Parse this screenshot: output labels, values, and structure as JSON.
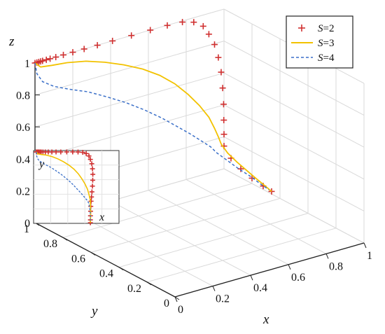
{
  "chart_data": {
    "type": "line",
    "subtype": "3d-trajectory",
    "xlabel": "x",
    "ylabel": "y",
    "zlabel": "z",
    "xlim": [
      0,
      1
    ],
    "ylim": [
      0,
      1
    ],
    "zlim": [
      0,
      1
    ],
    "x_ticks": [
      "0",
      "0.2",
      "0.4",
      "0.6",
      "0.8",
      "1"
    ],
    "y_ticks": [
      "0",
      "0.2",
      "0.4",
      "0.6",
      "0.8",
      "1"
    ],
    "z_ticks": [
      "0",
      "0.2",
      "0.4",
      "0.6",
      "0.8",
      "1"
    ],
    "grid": true,
    "legend_position": "top-right",
    "series": [
      {
        "name": "S=2",
        "legend_var": "S",
        "legend_val": "=2",
        "style": "plus-markers",
        "color": "#d03030",
        "points": [
          [
            0.0,
            1.0,
            1.0
          ],
          [
            0.01,
            1.0,
            1.0
          ],
          [
            0.02,
            1.0,
            1.0
          ],
          [
            0.03,
            1.0,
            1.0
          ],
          [
            0.04,
            1.0,
            1.0
          ],
          [
            0.06,
            1.0,
            1.0
          ],
          [
            0.08,
            1.0,
            1.0
          ],
          [
            0.11,
            1.0,
            1.0
          ],
          [
            0.15,
            1.0,
            1.0
          ],
          [
            0.2,
            1.0,
            1.0
          ],
          [
            0.26,
            1.0,
            1.0
          ],
          [
            0.33,
            1.0,
            1.0
          ],
          [
            0.41,
            1.0,
            1.0
          ],
          [
            0.51,
            1.0,
            1.0
          ],
          [
            0.61,
            1.0,
            1.0
          ],
          [
            0.7,
            1.0,
            0.999
          ],
          [
            0.78,
            1.0,
            0.993
          ],
          [
            0.84,
            1.0,
            0.972
          ],
          [
            0.89,
            1.0,
            0.93
          ],
          [
            0.92,
            1.0,
            0.87
          ],
          [
            0.95,
            1.0,
            0.795
          ],
          [
            0.97,
            1.0,
            0.707
          ],
          [
            0.985,
            1.0,
            0.61
          ],
          [
            0.993,
            1.0,
            0.508
          ],
          [
            0.998,
            1.0,
            0.405
          ],
          [
            0.999,
            1.0,
            0.305
          ],
          [
            1.0,
            1.0,
            0.216
          ],
          [
            1.0,
            1.0,
            0.142
          ],
          [
            1.0,
            0.95,
            0.089
          ],
          [
            1.0,
            0.88,
            0.055
          ],
          [
            1.0,
            0.8,
            0.034
          ],
          [
            1.0,
            0.72,
            0.022
          ],
          [
            1.0,
            0.66,
            0.016
          ]
        ]
      },
      {
        "name": "S=3",
        "legend_var": "S",
        "legend_val": "=3",
        "style": "solid",
        "color": "#f2c200",
        "points": [
          [
            0.0,
            1.0,
            1.0
          ],
          [
            0.03,
            1.0,
            0.965
          ],
          [
            0.09,
            1.0,
            0.955
          ],
          [
            0.17,
            1.0,
            0.945
          ],
          [
            0.27,
            1.0,
            0.92
          ],
          [
            0.37,
            1.0,
            0.88
          ],
          [
            0.47,
            1.0,
            0.83
          ],
          [
            0.57,
            1.0,
            0.77
          ],
          [
            0.66,
            1.0,
            0.7
          ],
          [
            0.74,
            1.0,
            0.62
          ],
          [
            0.81,
            1.0,
            0.53
          ],
          [
            0.87,
            1.0,
            0.44
          ],
          [
            0.92,
            1.0,
            0.35
          ],
          [
            0.95,
            1.0,
            0.27
          ],
          [
            0.97,
            1.0,
            0.21
          ],
          [
            0.985,
            1.0,
            0.16
          ],
          [
            0.99,
            0.96,
            0.12
          ],
          [
            0.995,
            0.9,
            0.09
          ],
          [
            1.0,
            0.84,
            0.065
          ],
          [
            1.0,
            0.77,
            0.045
          ],
          [
            1.0,
            0.71,
            0.03
          ],
          [
            1.0,
            0.66,
            0.016
          ]
        ]
      },
      {
        "name": "S=4",
        "legend_var": "S",
        "legend_val": "=4",
        "style": "dashed",
        "color": "#3a6fc8",
        "points": [
          [
            0.0,
            1.0,
            1.0
          ],
          [
            0.01,
            1.0,
            0.93
          ],
          [
            0.04,
            1.0,
            0.87
          ],
          [
            0.1,
            1.0,
            0.82
          ],
          [
            0.18,
            1.0,
            0.775
          ],
          [
            0.28,
            1.0,
            0.725
          ],
          [
            0.38,
            1.0,
            0.66
          ],
          [
            0.48,
            1.0,
            0.59
          ],
          [
            0.58,
            1.0,
            0.51
          ],
          [
            0.67,
            1.0,
            0.43
          ],
          [
            0.75,
            1.0,
            0.35
          ],
          [
            0.82,
            1.0,
            0.28
          ],
          [
            0.88,
            1.0,
            0.215
          ],
          [
            0.93,
            1.0,
            0.16
          ],
          [
            0.96,
            1.0,
            0.115
          ],
          [
            0.98,
            0.95,
            0.082
          ],
          [
            0.99,
            0.88,
            0.058
          ],
          [
            1.0,
            0.81,
            0.04
          ],
          [
            1.0,
            0.74,
            0.026
          ],
          [
            1.0,
            0.68,
            0.018
          ]
        ]
      }
    ]
  },
  "inset": {
    "xlabel": "x",
    "ylabel": "y"
  }
}
